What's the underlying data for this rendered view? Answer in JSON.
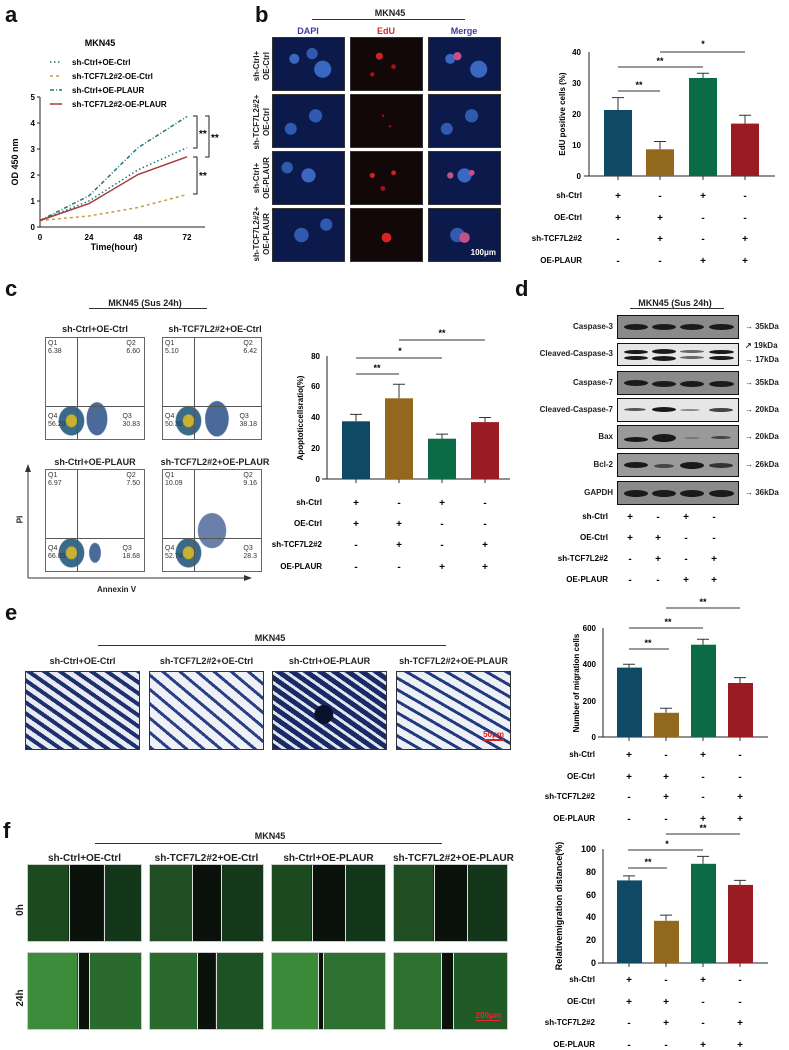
{
  "panels": {
    "a": {
      "letter": "a"
    },
    "b": {
      "letter": "b",
      "header": "MKN45",
      "columns": [
        "DAPI",
        "EdU",
        "Merge"
      ],
      "rows": [
        "sh-Ctrl+\nOE-Ctrl",
        "sh-TCF7L2#2+\nOE-Ctrl",
        "sh-Ctrl+\nOE-PLAUR",
        "sh-TCF7L2#2+\nOE-PLAUR"
      ],
      "scale_bar": "100μm"
    },
    "c": {
      "letter": "c",
      "header": "MKN45 (Sus 24h)",
      "ylabel": "PI",
      "xlabel": "Annexin V",
      "plots": [
        {
          "title": "sh-Ctrl+OE-Ctrl",
          "q1": "6.38",
          "q2": "6.60",
          "q3": "30.83",
          "q4": "56.20"
        },
        {
          "title": "sh-TCF7L2#2+OE-Ctrl",
          "q1": "5.10",
          "q2": "6.42",
          "q3": "38.18",
          "q4": "50.30"
        },
        {
          "title": "sh-Ctrl+OE-PLAUR",
          "q1": "6.97",
          "q2": "7.50",
          "q3": "18.68",
          "q4": "66.85"
        },
        {
          "title": "sh-TCF7L2#2+OE-PLAUR",
          "q1": "10.09",
          "q2": "9.16",
          "q3": "28.3",
          "q4": "52.74"
        }
      ]
    },
    "d": {
      "letter": "d",
      "header": "MKN45 (Sus 24h)",
      "blots": [
        {
          "name": "Caspase-3",
          "kda": "35kDa"
        },
        {
          "name": "Cleaved-Caspase-3",
          "kda": "19kDa",
          "kda2": "17kDa"
        },
        {
          "name": "Caspase-7",
          "kda": "35kDa"
        },
        {
          "name": "Cleaved-Caspase-7",
          "kda": "20kDa"
        },
        {
          "name": "Bax",
          "kda": "20kDa"
        },
        {
          "name": "Bcl-2",
          "kda": "26kDa"
        },
        {
          "name": "GAPDH",
          "kda": "36kDa"
        }
      ]
    },
    "e": {
      "letter": "e",
      "header": "MKN45",
      "columns": [
        "sh-Ctrl+OE-Ctrl",
        "sh-TCF7L2#2+OE-Ctrl",
        "sh-Ctrl+OE-PLAUR",
        "sh-TCF7L2#2+OE-PLAUR"
      ],
      "scale_bar": "50μm"
    },
    "f": {
      "letter": "f",
      "header": "MKN45",
      "columns": [
        "sh-Ctrl+OE-Ctrl",
        "sh-TCF7L2#2+OE-Ctrl",
        "sh-Ctrl+OE-PLAUR",
        "sh-TCF7L2#2+OE-PLAUR"
      ],
      "rows": [
        "0h",
        "24h"
      ],
      "scale_bar": "200μm"
    }
  },
  "condition_table": {
    "rows": [
      {
        "label": "sh-Ctrl",
        "values": [
          "+",
          "-",
          "+",
          "-"
        ]
      },
      {
        "label": "OE-Ctrl",
        "values": [
          "+",
          "+",
          "-",
          "-"
        ]
      },
      {
        "label": "sh-TCF7L2#2",
        "values": [
          "-",
          "+",
          "-",
          "+"
        ]
      },
      {
        "label": "OE-PLAUR",
        "values": [
          "-",
          "-",
          "+",
          "+"
        ]
      }
    ]
  },
  "colors": {
    "blue": "#0e4a63",
    "gold": "#92681f",
    "green": "#0b6b46",
    "red": "#9a1c22",
    "teal_line": "#1e7a78",
    "orange_line": "#c89a4a",
    "darkred_line": "#a83a3e"
  },
  "chart_data": [
    {
      "id": "a",
      "type": "line",
      "title": "MKN45",
      "xlabel": "Time(hour)",
      "ylabel": "OD 450 nm",
      "x": [
        0,
        24,
        48,
        72
      ],
      "xlim": [
        0,
        80
      ],
      "ylim": [
        0,
        5
      ],
      "yticks": [
        0,
        1,
        2,
        3,
        4,
        5
      ],
      "series": [
        {
          "name": "sh-Ctrl+OE-Ctrl",
          "values": [
            0.25,
            1.0,
            2.2,
            3.05
          ],
          "style": "dotted"
        },
        {
          "name": "sh-TCF7L2#2-OE-Ctrl",
          "values": [
            0.25,
            0.42,
            0.75,
            1.25
          ],
          "style": "dashed"
        },
        {
          "name": "sh-Ctrl+OE-PLAUR",
          "values": [
            0.25,
            1.2,
            3.05,
            4.25
          ],
          "style": "dashdot"
        },
        {
          "name": "sh-TCF7L2#2-OE-PLAUR",
          "values": [
            0.25,
            0.9,
            2.02,
            2.7
          ],
          "style": "solid"
        }
      ],
      "annotations": [
        "**",
        "**",
        "**"
      ],
      "legend_position": "top-left"
    },
    {
      "id": "b",
      "type": "bar",
      "title": "",
      "ylabel": "EdU positive cells (%)",
      "categories": [
        "sh-Ctrl+OE-Ctrl",
        "sh-TCF7L2#2+OE-Ctrl",
        "sh-Ctrl+OE-PLAUR",
        "sh-TCF7L2#2+OE-PLAUR"
      ],
      "values": [
        21.3,
        8.6,
        31.6,
        16.9
      ],
      "errors": [
        4.0,
        2.5,
        1.5,
        2.7
      ],
      "ylim": [
        0,
        40
      ],
      "yticks": [
        0,
        10,
        20,
        30,
        40
      ],
      "significance": [
        {
          "pair": [
            0,
            1
          ],
          "label": "**"
        },
        {
          "pair": [
            0,
            2
          ],
          "label": "**"
        },
        {
          "pair": [
            1,
            3
          ],
          "label": "*"
        }
      ]
    },
    {
      "id": "c",
      "type": "bar",
      "ylabel": "Apoptoticcellsratio(%)",
      "categories": [
        "sh-Ctrl+OE-Ctrl",
        "sh-TCF7L2#2+OE-Ctrl",
        "sh-Ctrl+OE-PLAUR",
        "sh-TCF7L2#2+OE-PLAUR"
      ],
      "values": [
        37.5,
        52.5,
        26.2,
        37.0
      ],
      "errors": [
        4.5,
        9.2,
        3.0,
        3.0
      ],
      "ylim": [
        0,
        80
      ],
      "yticks": [
        0,
        20,
        40,
        60,
        80
      ],
      "significance": [
        {
          "pair": [
            0,
            1
          ],
          "label": "**"
        },
        {
          "pair": [
            0,
            2
          ],
          "label": "*"
        },
        {
          "pair": [
            1,
            3
          ],
          "label": "**"
        }
      ]
    },
    {
      "id": "e",
      "type": "bar",
      "ylabel": "Number of migration cells",
      "categories": [
        "sh-Ctrl+OE-Ctrl",
        "sh-TCF7L2#2+OE-Ctrl",
        "sh-Ctrl+OE-PLAUR",
        "sh-TCF7L2#2+OE-PLAUR"
      ],
      "values": [
        382,
        133,
        508,
        297
      ],
      "errors": [
        18,
        25,
        30,
        30
      ],
      "ylim": [
        0,
        600
      ],
      "yticks": [
        0,
        200,
        400,
        600
      ],
      "significance": [
        {
          "pair": [
            0,
            1
          ],
          "label": "**"
        },
        {
          "pair": [
            0,
            2
          ],
          "label": "**"
        },
        {
          "pair": [
            1,
            3
          ],
          "label": "**"
        }
      ]
    },
    {
      "id": "f",
      "type": "bar",
      "ylabel": "Relativemigration distance(%)",
      "categories": [
        "sh-Ctrl+OE-Ctrl",
        "sh-TCF7L2#2+OE-Ctrl",
        "sh-Ctrl+OE-PLAUR",
        "sh-TCF7L2#2+OE-PLAUR"
      ],
      "values": [
        72.5,
        37.0,
        87.0,
        68.5
      ],
      "errors": [
        4.0,
        5.0,
        6.5,
        4.0
      ],
      "ylim": [
        0,
        100
      ],
      "yticks": [
        0,
        20,
        40,
        60,
        80,
        100
      ],
      "significance": [
        {
          "pair": [
            0,
            1
          ],
          "label": "**"
        },
        {
          "pair": [
            0,
            2
          ],
          "label": "*"
        },
        {
          "pair": [
            1,
            3
          ],
          "label": "**"
        }
      ]
    }
  ]
}
